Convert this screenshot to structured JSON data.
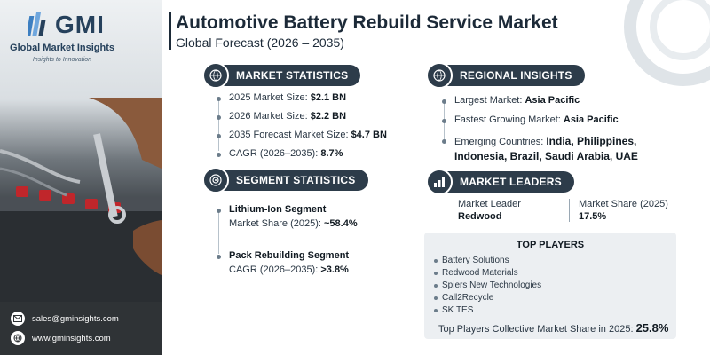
{
  "brand": {
    "logo_text": "GMI",
    "name": "Global Market Insights",
    "tagline": "Insights to Innovation"
  },
  "header": {
    "title": "Automotive Battery Rebuild Service Market",
    "subtitle": "Global Forecast (2026 – 2035)"
  },
  "contact": {
    "email": "sales@gminsights.com",
    "website": "www.gminsights.com"
  },
  "market_statistics": {
    "heading": "MARKET STATISTICS",
    "icon": "globe-chart-icon",
    "items": [
      {
        "label": "2025 Market Size: ",
        "value": "$2.1 BN"
      },
      {
        "label": "2026 Market Size: ",
        "value": "$2.2 BN"
      },
      {
        "label": "2035 Forecast Market Size: ",
        "value": "$4.7 BN"
      },
      {
        "label": "CAGR (2026–2035): ",
        "value": "8.7%"
      }
    ]
  },
  "segment_statistics": {
    "heading": "SEGMENT STATISTICS",
    "icon": "target-icon",
    "items": [
      {
        "name": "Lithium-Ion Segment",
        "label": "Market Share (2025): ",
        "value": "~58.4%"
      },
      {
        "name": "Pack Rebuilding Segment",
        "label": "CAGR (2026–2035): ",
        "value": ">3.8%"
      }
    ]
  },
  "regional_insights": {
    "heading": "REGIONAL INSIGHTS",
    "icon": "globe-icon",
    "largest_label": "Largest Market: ",
    "largest_value": "Asia Pacific",
    "fastest_label": "Fastest Growing Market: ",
    "fastest_value": "Asia Pacific",
    "emerging_label": "Emerging Countries: ",
    "emerging_value_line1": "India, Philippines,",
    "emerging_value_line2": "Indonesia, Brazil, Saudi Arabia, UAE"
  },
  "market_leaders": {
    "heading": "MARKET LEADERS",
    "icon": "bar-chart-icon",
    "leader_label": "Market Leader",
    "leader_value": "Redwood",
    "share_label": "Market Share (2025)",
    "share_value": "17.5%"
  },
  "top_players": {
    "heading": "TOP PLAYERS",
    "players": [
      "Battery Solutions",
      "Redwood Materials",
      "Spiers New Technologies",
      "Call2Recycle",
      "SK TES"
    ],
    "collective_label": "Top Players Collective Market Share in 2025: ",
    "collective_value": "25.8%"
  },
  "colors": {
    "header_pill": "#2d3c4a",
    "title": "#1c2a38",
    "footer": "#2f3336",
    "box": "#eceff2"
  }
}
